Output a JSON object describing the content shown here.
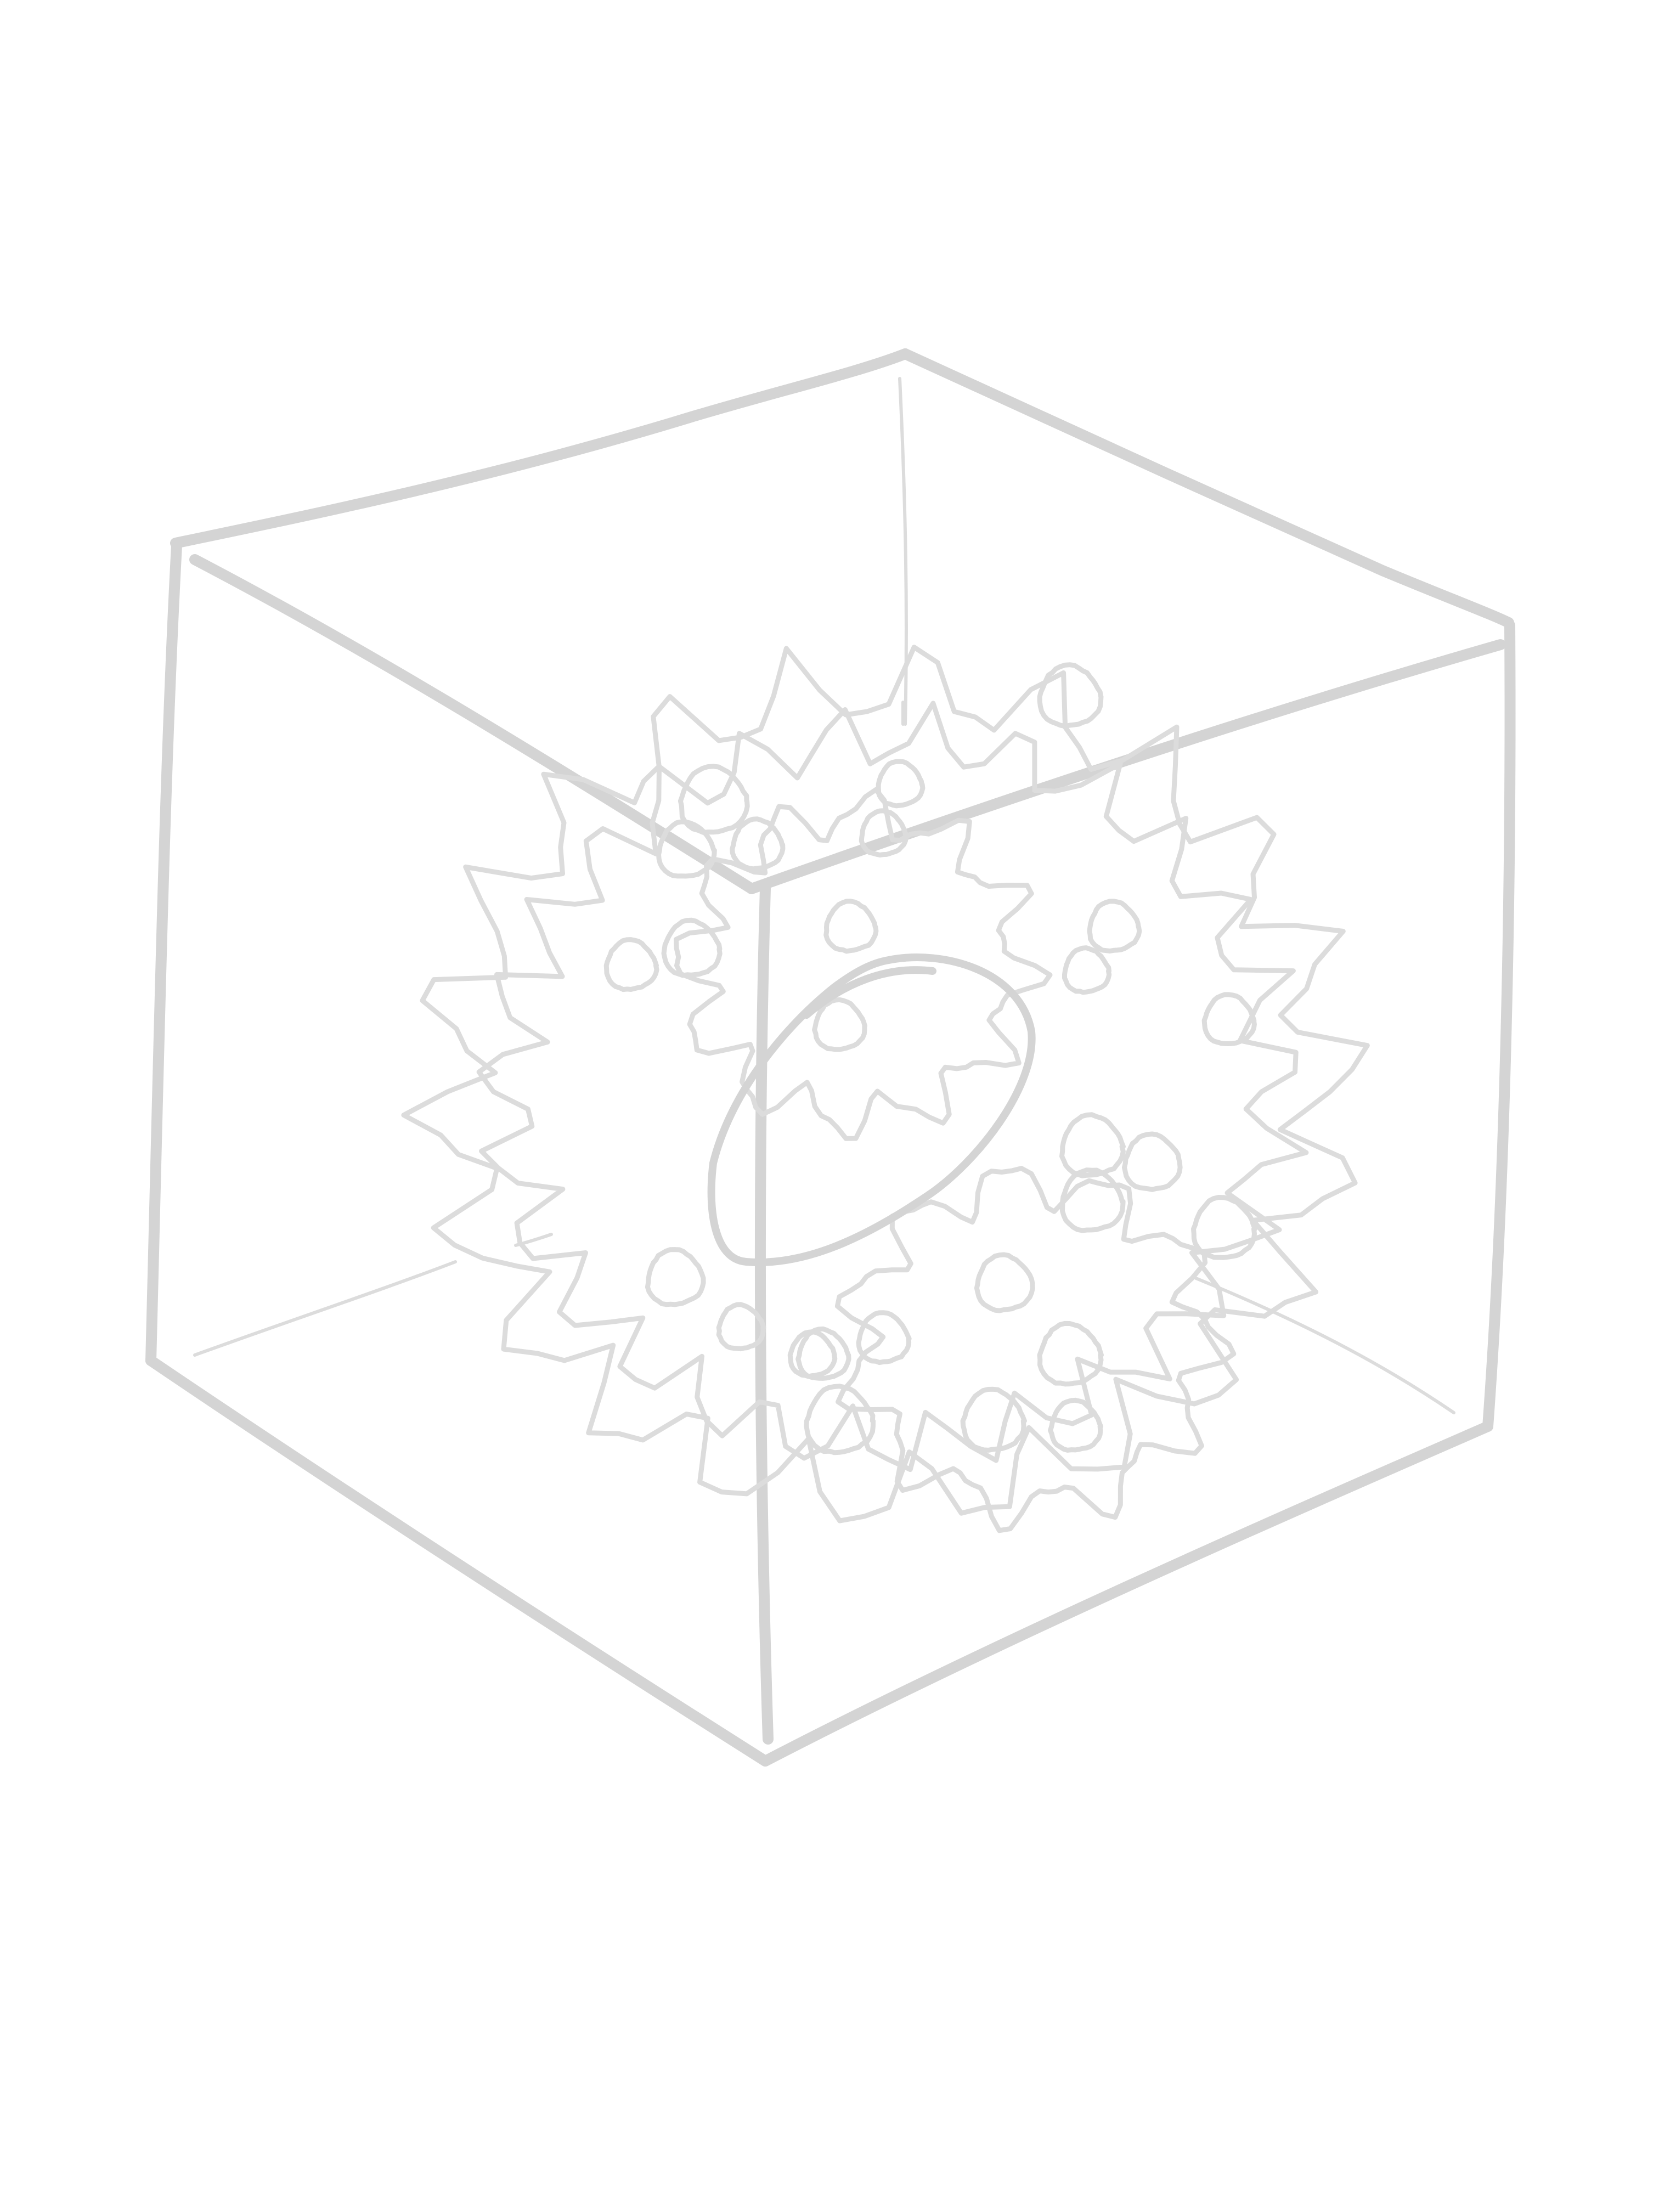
{
  "drawing": {
    "subject_icon": "cube-with-organic-cluster-icon",
    "colors": {
      "background": "#ffffff",
      "line": "#d4d4d4",
      "line_light": "#dcdcdc"
    }
  }
}
